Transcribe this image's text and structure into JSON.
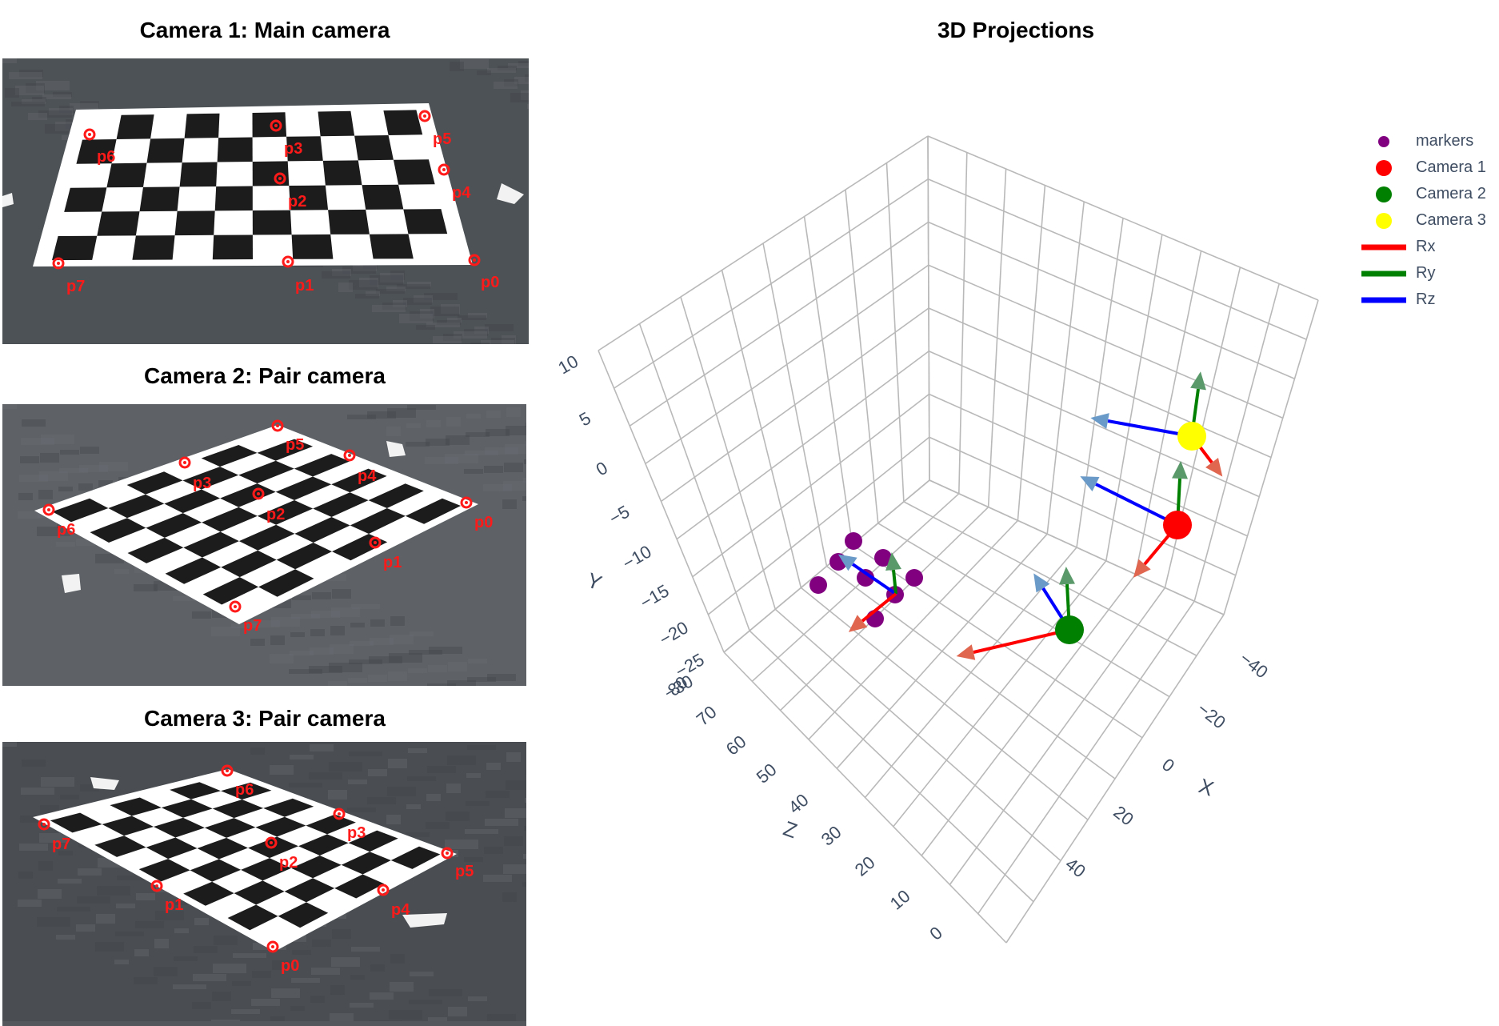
{
  "cameras": [
    {
      "title": "Camera 1: Main camera",
      "points": [
        {
          "label": "p0"
        },
        {
          "label": "p1"
        },
        {
          "label": "p2"
        },
        {
          "label": "p3"
        },
        {
          "label": "p4"
        },
        {
          "label": "p5"
        },
        {
          "label": "p6"
        },
        {
          "label": "p7"
        }
      ]
    },
    {
      "title": "Camera 2: Pair camera",
      "points": [
        {
          "label": "p0"
        },
        {
          "label": "p1"
        },
        {
          "label": "p2"
        },
        {
          "label": "p3"
        },
        {
          "label": "p4"
        },
        {
          "label": "p5"
        },
        {
          "label": "p6"
        },
        {
          "label": "p7"
        }
      ]
    },
    {
      "title": "Camera 3: Pair camera",
      "points": [
        {
          "label": "p0"
        },
        {
          "label": "p1"
        },
        {
          "label": "p2"
        },
        {
          "label": "p3"
        },
        {
          "label": "p4"
        },
        {
          "label": "p5"
        },
        {
          "label": "p6"
        },
        {
          "label": "p7"
        }
      ]
    }
  ],
  "plot3d": {
    "title": "3D Projections",
    "axes": {
      "x": {
        "title": "X",
        "ticks": [
          "−40",
          "−20",
          "0",
          "20",
          "40"
        ]
      },
      "y": {
        "title": "Y",
        "ticks": [
          "10",
          "5",
          "0",
          "−5",
          "−10",
          "−15",
          "−20",
          "−25",
          "−30"
        ]
      },
      "z": {
        "title": "Z",
        "ticks": [
          "80",
          "70",
          "60",
          "50",
          "40",
          "30",
          "20",
          "10",
          "0"
        ]
      }
    },
    "legend": [
      {
        "label": "markers",
        "kind": "dot-small",
        "color": "#800080"
      },
      {
        "label": "Camera 1",
        "kind": "dot",
        "color": "#ff0000"
      },
      {
        "label": "Camera 2",
        "kind": "dot",
        "color": "#008000"
      },
      {
        "label": "Camera 3",
        "kind": "dot",
        "color": "#ffff00"
      },
      {
        "label": "Rx",
        "kind": "line",
        "color": "#ff0000"
      },
      {
        "label": "Ry",
        "kind": "line",
        "color": "#008000"
      },
      {
        "label": "Rz",
        "kind": "line",
        "color": "#0000ff"
      }
    ]
  }
}
